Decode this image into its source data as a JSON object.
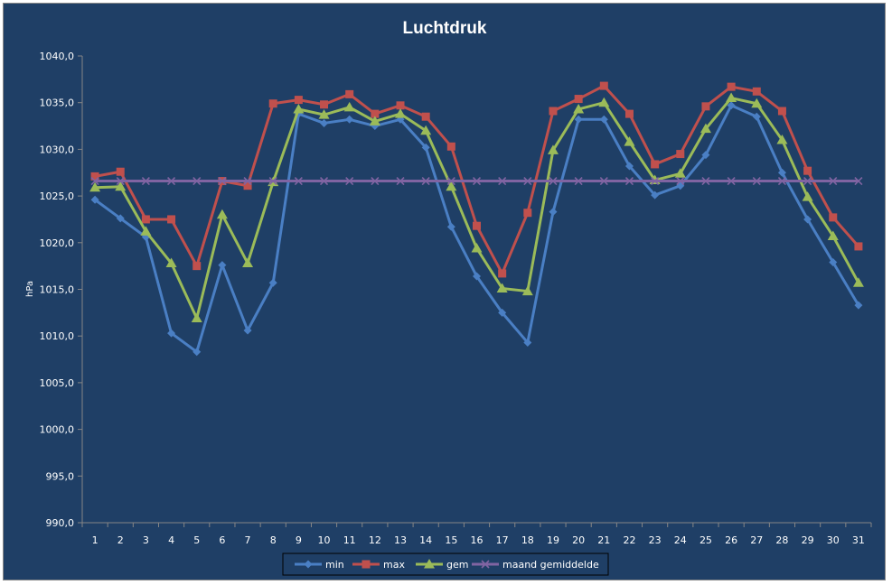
{
  "chart_data": {
    "type": "line",
    "title": "Luchtdruk",
    "xlabel": "",
    "ylabel": "hPa",
    "ylim": [
      990,
      1040
    ],
    "ytick_step": 5,
    "ytick_labels": [
      "990,0",
      "995,0",
      "1000,0",
      "1005,0",
      "1010,0",
      "1015,0",
      "1020,0",
      "1025,0",
      "1030,0",
      "1035,0",
      "1040,0"
    ],
    "categories": [
      "1",
      "2",
      "3",
      "4",
      "5",
      "6",
      "7",
      "8",
      "9",
      "10",
      "11",
      "12",
      "13",
      "14",
      "15",
      "16",
      "17",
      "18",
      "19",
      "20",
      "21",
      "22",
      "23",
      "24",
      "25",
      "26",
      "27",
      "28",
      "29",
      "30",
      "31"
    ],
    "grid": false,
    "legend_position": "bottom",
    "series": [
      {
        "name": "min",
        "color": "#4a7fc4",
        "marker": "diamond",
        "values": [
          1024.6,
          1022.6,
          1020.6,
          1010.3,
          1008.3,
          1017.6,
          1010.6,
          1015.7,
          1033.8,
          1032.8,
          1033.2,
          1032.5,
          1033.2,
          1030.2,
          1021.7,
          1016.4,
          1012.5,
          1009.3,
          1023.3,
          1033.2,
          1033.2,
          1028.2,
          1025.1,
          1026.1,
          1029.4,
          1034.7,
          1033.5,
          1027.5,
          1022.5,
          1017.9,
          1013.3
        ]
      },
      {
        "name": "max",
        "color": "#c0504d",
        "marker": "square",
        "values": [
          1027.1,
          1027.6,
          1022.5,
          1022.5,
          1017.5,
          1026.6,
          1026.1,
          1034.9,
          1035.3,
          1034.8,
          1035.9,
          1033.8,
          1034.7,
          1033.5,
          1030.3,
          1021.8,
          1016.7,
          1023.2,
          1034.1,
          1035.4,
          1036.8,
          1033.8,
          1028.4,
          1029.5,
          1034.6,
          1036.7,
          1036.2,
          1034.1,
          1027.7,
          1022.7,
          1019.6
        ]
      },
      {
        "name": "gem",
        "color": "#9bbb59",
        "marker": "triangle",
        "values": [
          1025.9,
          1026.0,
          1021.2,
          1017.8,
          1011.9,
          1023.0,
          1017.8,
          1026.5,
          1034.3,
          1033.7,
          1034.5,
          1033.0,
          1033.8,
          1032.0,
          1026.0,
          1019.4,
          1015.1,
          1014.8,
          1029.9,
          1034.3,
          1035.0,
          1030.8,
          1026.7,
          1027.4,
          1032.2,
          1035.5,
          1034.9,
          1031.0,
          1024.9,
          1020.7,
          1015.7
        ]
      },
      {
        "name": "maand gemiddelde",
        "color": "#8064a2",
        "marker": "x",
        "values": [
          1026.6,
          1026.6,
          1026.6,
          1026.6,
          1026.6,
          1026.6,
          1026.6,
          1026.6,
          1026.6,
          1026.6,
          1026.6,
          1026.6,
          1026.6,
          1026.6,
          1026.6,
          1026.6,
          1026.6,
          1026.6,
          1026.6,
          1026.6,
          1026.6,
          1026.6,
          1026.6,
          1026.6,
          1026.6,
          1026.6,
          1026.6,
          1026.6,
          1026.6,
          1026.6,
          1026.6
        ]
      }
    ]
  }
}
